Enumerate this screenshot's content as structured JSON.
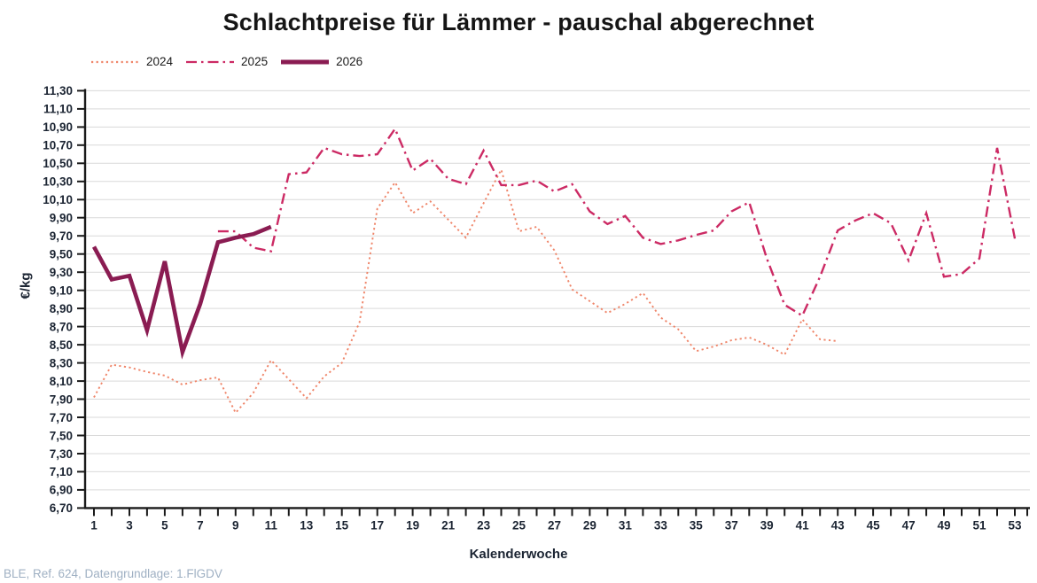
{
  "title": "Schlachtpreise für Lämmer - pauschal abgerechnet",
  "footnote": "BLE, Ref. 624, Datengrundlage: 1.FlGDV",
  "colors": {
    "series_2024": "#ef8569",
    "series_2025": "#cc2a64",
    "series_2026": "#8a1c52",
    "gridline": "#d9d9d9",
    "axis": "#1a1a1a",
    "tick_label": "#1c2533",
    "footnote_text": "#9fb0c3"
  },
  "chart_data": {
    "type": "line",
    "title": "Schlachtpreise für Lämmer - pauschal abgerechnet",
    "xlabel": "Kalenderwoche",
    "ylabel": "€/kg",
    "grid": true,
    "legend_position": "top-left",
    "x_range": [
      1,
      53
    ],
    "x_tick_labels": [
      1,
      3,
      5,
      7,
      9,
      11,
      13,
      15,
      17,
      19,
      21,
      23,
      25,
      27,
      29,
      31,
      33,
      35,
      37,
      39,
      41,
      43,
      45,
      47,
      49,
      51,
      53
    ],
    "ylim": [
      6.7,
      11.3
    ],
    "y_tick_step": 0.2,
    "y_tick_labels": [
      "11,30",
      "11,10",
      "10,90",
      "10,70",
      "10,50",
      "10,30",
      "10,10",
      "9,90",
      "9,70",
      "9,50",
      "9,30",
      "9,10",
      "8,90",
      "8,70",
      "8,50",
      "8,30",
      "8,10",
      "7,90",
      "7,70",
      "7,50",
      "7,30",
      "7,10",
      "6,90",
      "6,70"
    ],
    "series": [
      {
        "name": "2024",
        "color": "#ef8569",
        "style": "dotted",
        "width": 1.9,
        "points": [
          [
            1,
            7.92
          ],
          [
            2,
            8.28
          ],
          [
            3,
            8.25
          ],
          [
            4,
            8.2
          ],
          [
            5,
            8.16
          ],
          [
            6,
            8.06
          ],
          [
            7,
            8.11
          ],
          [
            8,
            8.14
          ],
          [
            9,
            7.75
          ],
          [
            10,
            7.97
          ],
          [
            11,
            8.33
          ],
          [
            12,
            8.12
          ],
          [
            13,
            7.91
          ],
          [
            14,
            8.15
          ],
          [
            15,
            8.3
          ],
          [
            16,
            8.75
          ],
          [
            17,
            10.0
          ],
          [
            18,
            10.29
          ],
          [
            19,
            9.95
          ],
          [
            20,
            10.08
          ],
          [
            21,
            9.88
          ],
          [
            22,
            9.68
          ],
          [
            23,
            10.06
          ],
          [
            24,
            10.43
          ],
          [
            25,
            9.75
          ],
          [
            26,
            9.8
          ],
          [
            27,
            9.54
          ],
          [
            28,
            9.11
          ],
          [
            29,
            8.98
          ],
          [
            30,
            8.85
          ],
          [
            31,
            8.95
          ],
          [
            32,
            9.07
          ],
          [
            33,
            8.8
          ],
          [
            34,
            8.67
          ],
          [
            35,
            8.43
          ],
          [
            36,
            8.48
          ],
          [
            37,
            8.55
          ],
          [
            38,
            8.58
          ],
          [
            39,
            8.5
          ],
          [
            40,
            8.39
          ],
          [
            41,
            8.78
          ],
          [
            42,
            8.56
          ],
          [
            43,
            8.54
          ]
        ]
      },
      {
        "name": "2025",
        "color": "#cc2a64",
        "style": "dashdot",
        "width": 2.4,
        "points": [
          [
            8,
            9.75
          ],
          [
            9,
            9.75
          ],
          [
            10,
            9.57
          ],
          [
            11,
            9.53
          ],
          [
            12,
            10.38
          ],
          [
            13,
            10.4
          ],
          [
            14,
            10.67
          ],
          [
            15,
            10.6
          ],
          [
            16,
            10.58
          ],
          [
            17,
            10.6
          ],
          [
            18,
            10.88
          ],
          [
            19,
            10.42
          ],
          [
            20,
            10.55
          ],
          [
            21,
            10.33
          ],
          [
            22,
            10.27
          ],
          [
            23,
            10.64
          ],
          [
            24,
            10.26
          ],
          [
            25,
            10.26
          ],
          [
            26,
            10.31
          ],
          [
            27,
            10.19
          ],
          [
            28,
            10.27
          ],
          [
            29,
            9.97
          ],
          [
            30,
            9.83
          ],
          [
            31,
            9.92
          ],
          [
            32,
            9.68
          ],
          [
            33,
            9.61
          ],
          [
            34,
            9.65
          ],
          [
            35,
            9.71
          ],
          [
            36,
            9.76
          ],
          [
            37,
            9.97
          ],
          [
            38,
            10.07
          ],
          [
            39,
            9.45
          ],
          [
            40,
            8.94
          ],
          [
            41,
            8.82
          ],
          [
            42,
            9.25
          ],
          [
            43,
            9.76
          ],
          [
            44,
            9.87
          ],
          [
            45,
            9.95
          ],
          [
            46,
            9.84
          ],
          [
            47,
            9.43
          ],
          [
            48,
            9.95
          ],
          [
            49,
            9.25
          ],
          [
            50,
            9.28
          ],
          [
            51,
            9.45
          ],
          [
            52,
            10.67
          ],
          [
            53,
            9.67
          ]
        ]
      },
      {
        "name": "2026",
        "color": "#8a1c52",
        "style": "solid",
        "width": 4.6,
        "points": [
          [
            1,
            9.58
          ],
          [
            2,
            9.22
          ],
          [
            3,
            9.26
          ],
          [
            4,
            8.66
          ],
          [
            5,
            9.42
          ],
          [
            6,
            8.42
          ],
          [
            7,
            8.95
          ],
          [
            8,
            9.63
          ],
          [
            9,
            9.68
          ],
          [
            10,
            9.72
          ],
          [
            11,
            9.8
          ]
        ]
      }
    ]
  }
}
